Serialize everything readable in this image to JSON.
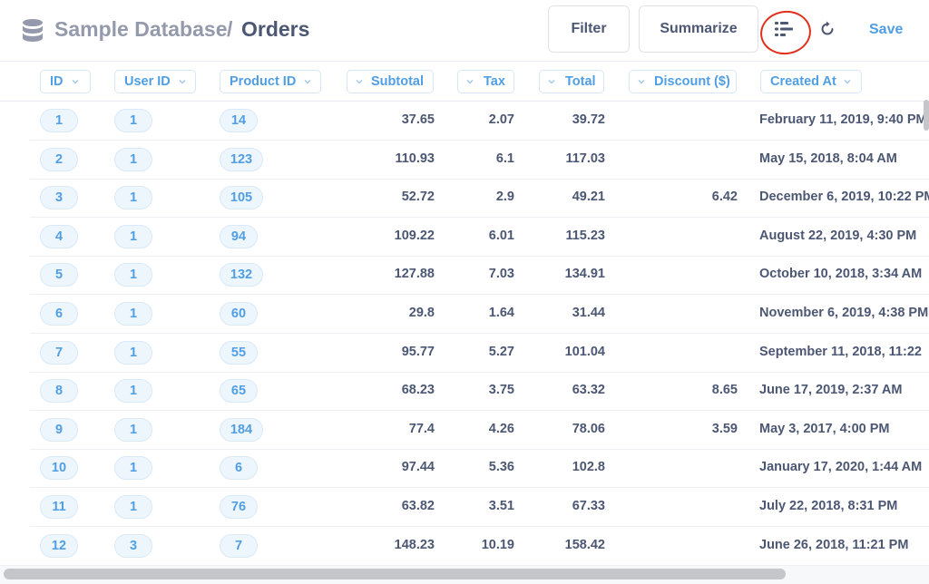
{
  "header": {
    "database": "Sample Database",
    "separator": "/",
    "table": "Orders",
    "filter_label": "Filter",
    "summarize_label": "Summarize",
    "save_label": "Save",
    "icons": {
      "database": "database-icon",
      "list": "list-icon",
      "refresh": "refresh-icon"
    }
  },
  "columns": [
    {
      "label": "ID"
    },
    {
      "label": "User ID"
    },
    {
      "label": "Product ID"
    },
    {
      "label": "Subtotal"
    },
    {
      "label": "Tax"
    },
    {
      "label": "Total"
    },
    {
      "label": "Discount ($)"
    },
    {
      "label": "Created At"
    }
  ],
  "rows": [
    {
      "id": "1",
      "user_id": "1",
      "product_id": "14",
      "subtotal": "37.65",
      "tax": "2.07",
      "total": "39.72",
      "discount": "",
      "created_at": "February 11, 2019, 9:40 PM"
    },
    {
      "id": "2",
      "user_id": "1",
      "product_id": "123",
      "subtotal": "110.93",
      "tax": "6.1",
      "total": "117.03",
      "discount": "",
      "created_at": "May 15, 2018, 8:04 AM"
    },
    {
      "id": "3",
      "user_id": "1",
      "product_id": "105",
      "subtotal": "52.72",
      "tax": "2.9",
      "total": "49.21",
      "discount": "6.42",
      "created_at": "December 6, 2019, 10:22 PM"
    },
    {
      "id": "4",
      "user_id": "1",
      "product_id": "94",
      "subtotal": "109.22",
      "tax": "6.01",
      "total": "115.23",
      "discount": "",
      "created_at": "August 22, 2019, 4:30 PM"
    },
    {
      "id": "5",
      "user_id": "1",
      "product_id": "132",
      "subtotal": "127.88",
      "tax": "7.03",
      "total": "134.91",
      "discount": "",
      "created_at": "October 10, 2018, 3:34 AM"
    },
    {
      "id": "6",
      "user_id": "1",
      "product_id": "60",
      "subtotal": "29.8",
      "tax": "1.64",
      "total": "31.44",
      "discount": "",
      "created_at": "November 6, 2019, 4:38 PM"
    },
    {
      "id": "7",
      "user_id": "1",
      "product_id": "55",
      "subtotal": "95.77",
      "tax": "5.27",
      "total": "101.04",
      "discount": "",
      "created_at": "September 11, 2018, 11:22"
    },
    {
      "id": "8",
      "user_id": "1",
      "product_id": "65",
      "subtotal": "68.23",
      "tax": "3.75",
      "total": "63.32",
      "discount": "8.65",
      "created_at": "June 17, 2019, 2:37 AM"
    },
    {
      "id": "9",
      "user_id": "1",
      "product_id": "184",
      "subtotal": "77.4",
      "tax": "4.26",
      "total": "78.06",
      "discount": "3.59",
      "created_at": "May 3, 2017, 4:00 PM"
    },
    {
      "id": "10",
      "user_id": "1",
      "product_id": "6",
      "subtotal": "97.44",
      "tax": "5.36",
      "total": "102.8",
      "discount": "",
      "created_at": "January 17, 2020, 1:44 AM"
    },
    {
      "id": "11",
      "user_id": "1",
      "product_id": "76",
      "subtotal": "63.82",
      "tax": "3.51",
      "total": "67.33",
      "discount": "",
      "created_at": "July 22, 2018, 8:31 PM"
    },
    {
      "id": "12",
      "user_id": "3",
      "product_id": "7",
      "subtotal": "148.23",
      "tax": "10.19",
      "total": "158.42",
      "discount": "",
      "created_at": "June 26, 2018, 11:21 PM"
    }
  ],
  "colors": {
    "brand": "#509ee3",
    "text": "#4c5773",
    "muted": "#949aab",
    "annotation": "#e0301e"
  }
}
